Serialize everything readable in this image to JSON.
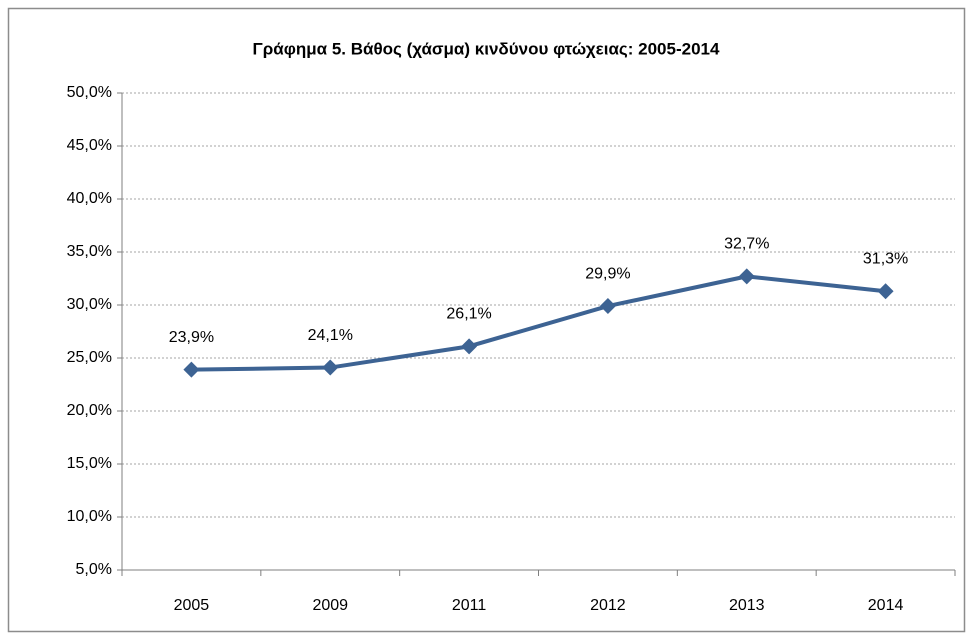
{
  "chart_data": {
    "type": "line",
    "title": "Γράφημα 5. Βάθος (χάσμα) κινδύνου φτώχειας: 2005-2014",
    "categories": [
      "2005",
      "2009",
      "2011",
      "2012",
      "2013",
      "2014"
    ],
    "values": [
      23.9,
      24.1,
      26.1,
      29.9,
      32.7,
      31.3
    ],
    "value_labels": [
      "23,9%",
      "24,1%",
      "26,1%",
      "29,9%",
      "32,7%",
      "31,3%"
    ],
    "color": "#3d6393",
    "ylim": [
      5,
      50
    ],
    "yticks": [
      {
        "value": 5,
        "label": "5,0%"
      },
      {
        "value": 10,
        "label": "10,0%"
      },
      {
        "value": 15,
        "label": "15,0%"
      },
      {
        "value": 20,
        "label": "20,0%"
      },
      {
        "value": 25,
        "label": "25,0%"
      },
      {
        "value": 30,
        "label": "30,0%"
      },
      {
        "value": 35,
        "label": "35,0%"
      },
      {
        "value": 40,
        "label": "40,0%"
      },
      {
        "value": 45,
        "label": "45,0%"
      },
      {
        "value": 50,
        "label": "50,0%"
      }
    ],
    "grid": true
  }
}
